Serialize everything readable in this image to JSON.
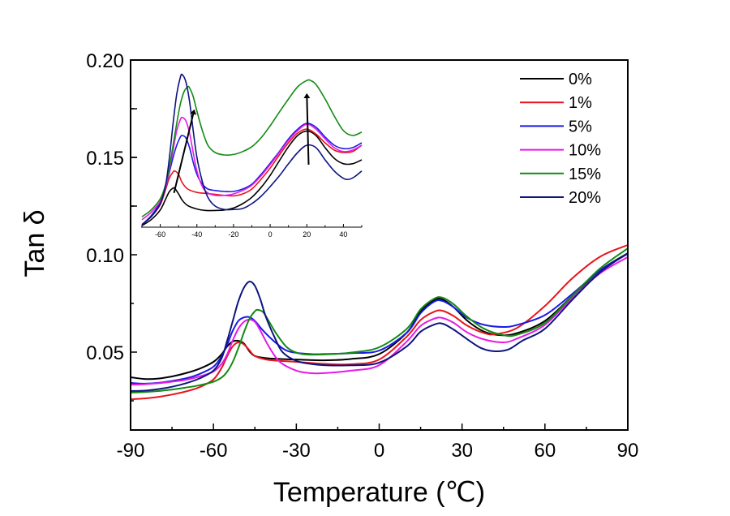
{
  "chart_data": {
    "type": "line",
    "title": "",
    "xlabel": "Temperature (℃)",
    "ylabel": "Tan δ",
    "xlim": [
      -90,
      90
    ],
    "ylim": [
      0.01,
      0.2
    ],
    "xticks": [
      -90,
      -60,
      -30,
      0,
      30,
      60,
      90
    ],
    "xtick_labels": [
      "-90",
      "-60",
      "-30",
      "0",
      "30",
      "60",
      "90"
    ],
    "yticks": [
      0.05,
      0.1,
      0.15,
      0.2
    ],
    "ytick_labels": [
      "0.05",
      "0.10",
      "0.15",
      "0.20"
    ],
    "grid": false,
    "legend_position": "top-right",
    "series": [
      {
        "name": "0%",
        "color": "#000000",
        "x": [
          -90,
          -85,
          -80,
          -75,
          -70,
          -65,
          -60,
          -57,
          -55,
          -53,
          -51,
          -49,
          -47,
          -45,
          -40,
          -30,
          -20,
          -10,
          0,
          10,
          15,
          20,
          23,
          27,
          32,
          38,
          44,
          50,
          60,
          70,
          80,
          90
        ],
        "y": [
          0.0371,
          0.0362,
          0.0364,
          0.0375,
          0.0392,
          0.0415,
          0.045,
          0.049,
          0.053,
          0.0555,
          0.0558,
          0.0545,
          0.0505,
          0.048,
          0.0468,
          0.0462,
          0.0458,
          0.0465,
          0.049,
          0.06,
          0.071,
          0.0768,
          0.077,
          0.073,
          0.066,
          0.0605,
          0.0587,
          0.0598,
          0.066,
          0.079,
          0.092,
          0.1008
        ]
      },
      {
        "name": "1%",
        "color": "#e8141c",
        "x": [
          -90,
          -85,
          -80,
          -75,
          -70,
          -65,
          -60,
          -57,
          -55,
          -53,
          -51,
          -49,
          -47,
          -45,
          -40,
          -30,
          -20,
          -10,
          0,
          10,
          15,
          20,
          23,
          27,
          32,
          38,
          42,
          50,
          60,
          70,
          80,
          90
        ],
        "y": [
          0.0258,
          0.0262,
          0.027,
          0.0282,
          0.0298,
          0.032,
          0.036,
          0.042,
          0.048,
          0.053,
          0.055,
          0.054,
          0.051,
          0.048,
          0.046,
          0.045,
          0.044,
          0.0438,
          0.0462,
          0.058,
          0.0665,
          0.0708,
          0.0712,
          0.0685,
          0.0635,
          0.0598,
          0.0592,
          0.0625,
          0.0737,
          0.088,
          0.099,
          0.105
        ]
      },
      {
        "name": "5%",
        "color": "#1a1ae6",
        "x": [
          -90,
          -85,
          -80,
          -75,
          -70,
          -65,
          -60,
          -57,
          -55,
          -53,
          -51,
          -49,
          -47,
          -45,
          -42,
          -38,
          -33,
          -25,
          -20,
          -10,
          0,
          10,
          15,
          20,
          23,
          27,
          32,
          38,
          45,
          50,
          60,
          70,
          80,
          90
        ],
        "y": [
          0.0342,
          0.0338,
          0.0342,
          0.0352,
          0.0365,
          0.0388,
          0.0425,
          0.048,
          0.054,
          0.061,
          0.066,
          0.0678,
          0.068,
          0.066,
          0.061,
          0.0555,
          0.0505,
          0.049,
          0.049,
          0.0495,
          0.0508,
          0.06,
          0.07,
          0.076,
          0.0762,
          0.073,
          0.0675,
          0.064,
          0.0629,
          0.064,
          0.069,
          0.08,
          0.092,
          0.1005
        ]
      },
      {
        "name": "10%",
        "color": "#e61ae6",
        "x": [
          -90,
          -85,
          -80,
          -75,
          -70,
          -65,
          -60,
          -57,
          -55,
          -53,
          -51,
          -49,
          -47,
          -45,
          -43,
          -40,
          -36,
          -30,
          -25,
          -20,
          -10,
          0,
          10,
          15,
          20,
          23,
          27,
          32,
          38,
          45,
          50,
          60,
          70,
          80,
          90
        ],
        "y": [
          0.0333,
          0.0335,
          0.034,
          0.0348,
          0.0358,
          0.0375,
          0.04,
          0.044,
          0.049,
          0.056,
          0.062,
          0.0655,
          0.0667,
          0.0655,
          0.061,
          0.053,
          0.045,
          0.0405,
          0.0392,
          0.0392,
          0.0405,
          0.0433,
          0.0555,
          0.0635,
          0.0672,
          0.0675,
          0.065,
          0.06,
          0.0565,
          0.055,
          0.057,
          0.064,
          0.078,
          0.0905,
          0.0988
        ]
      },
      {
        "name": "15%",
        "color": "#138a13",
        "x": [
          -90,
          -85,
          -80,
          -75,
          -70,
          -65,
          -60,
          -57,
          -55,
          -53,
          -51,
          -49,
          -47,
          -45,
          -44,
          -42,
          -40,
          -37,
          -33,
          -28,
          -20,
          -10,
          0,
          10,
          15,
          20,
          23,
          27,
          32,
          38,
          45,
          50,
          60,
          70,
          80,
          90
        ],
        "y": [
          0.0292,
          0.0295,
          0.03,
          0.0308,
          0.0318,
          0.033,
          0.0348,
          0.037,
          0.04,
          0.045,
          0.052,
          0.06,
          0.067,
          0.071,
          0.0717,
          0.0705,
          0.066,
          0.059,
          0.052,
          0.049,
          0.0488,
          0.0498,
          0.0525,
          0.062,
          0.072,
          0.0775,
          0.0779,
          0.0745,
          0.068,
          0.062,
          0.0587,
          0.059,
          0.065,
          0.079,
          0.093,
          0.1033
        ]
      },
      {
        "name": "20%",
        "color": "#0d1380",
        "x": [
          -90,
          -85,
          -80,
          -75,
          -70,
          -65,
          -60,
          -57,
          -55,
          -53,
          -51,
          -49,
          -47,
          -45,
          -43,
          -41,
          -38,
          -35,
          -30,
          -25,
          -20,
          -10,
          0,
          10,
          15,
          20,
          23,
          27,
          32,
          37,
          42,
          47,
          52,
          60,
          70,
          80,
          90
        ],
        "y": [
          0.03,
          0.0302,
          0.031,
          0.0322,
          0.034,
          0.0365,
          0.0405,
          0.047,
          0.056,
          0.066,
          0.076,
          0.083,
          0.0862,
          0.084,
          0.077,
          0.068,
          0.058,
          0.05,
          0.0455,
          0.044,
          0.0433,
          0.0432,
          0.0446,
          0.053,
          0.0605,
          0.0642,
          0.0646,
          0.0615,
          0.0565,
          0.052,
          0.0504,
          0.0515,
          0.056,
          0.062,
          0.077,
          0.091,
          0.1008
        ]
      }
    ],
    "inset": {
      "xlim": [
        -70,
        50
      ],
      "ylim": [
        0.567,
        4.0
      ],
      "xticks": [
        -60,
        -40,
        -20,
        0,
        20,
        40
      ],
      "xtick_labels": [
        "-60",
        "-40",
        "-20",
        "0",
        "20",
        "40"
      ],
      "minor_xticks": [
        -70,
        -50,
        -30,
        -10,
        10,
        30,
        50
      ],
      "yticks": [
        1,
        2,
        3
      ],
      "ytick_labels": [
        "",
        "",
        ""
      ],
      "y_units_note": "unlabeled",
      "series": [
        {
          "name": "0%",
          "x": [
            -70,
            -65,
            -60,
            -57,
            -55,
            -53,
            -52,
            -50,
            -48,
            -45,
            -40,
            -35,
            -30,
            -25,
            -20,
            -15,
            -10,
            -5,
            0,
            5,
            10,
            15,
            20,
            25,
            30,
            35,
            40,
            45,
            50
          ],
          "y": [
            0.6,
            0.72,
            0.92,
            1.15,
            1.3,
            1.37,
            1.36,
            1.25,
            1.12,
            1.01,
            0.94,
            0.91,
            0.91,
            0.92,
            0.96,
            1.05,
            1.18,
            1.38,
            1.63,
            1.93,
            2.22,
            2.45,
            2.54,
            2.45,
            2.2,
            1.98,
            1.87,
            1.87,
            1.95
          ]
        },
        {
          "name": "1%",
          "x": [
            -70,
            -65,
            -60,
            -57,
            -55,
            -53,
            -52,
            -50,
            -48,
            -45,
            -40,
            -35,
            -30,
            -25,
            -20,
            -15,
            -10,
            -5,
            0,
            5,
            10,
            15,
            20,
            25,
            30,
            35,
            40,
            45,
            50
          ],
          "y": [
            0.62,
            0.78,
            1.03,
            1.35,
            1.58,
            1.7,
            1.72,
            1.65,
            1.48,
            1.35,
            1.28,
            1.26,
            1.24,
            1.22,
            1.21,
            1.25,
            1.35,
            1.55,
            1.78,
            2.05,
            2.3,
            2.5,
            2.58,
            2.48,
            2.3,
            2.15,
            2.1,
            2.12,
            2.25
          ]
        },
        {
          "name": "5%",
          "x": [
            -70,
            -65,
            -60,
            -57,
            -55,
            -53,
            -51,
            -49,
            -48,
            -46,
            -44,
            -42,
            -40,
            -37,
            -34,
            -30,
            -25,
            -20,
            -15,
            -10,
            -5,
            0,
            5,
            10,
            15,
            20,
            25,
            30,
            35,
            40,
            45,
            50
          ],
          "y": [
            0.62,
            0.8,
            1.08,
            1.4,
            1.7,
            2.0,
            2.25,
            2.42,
            2.45,
            2.4,
            2.2,
            1.9,
            1.65,
            1.45,
            1.35,
            1.32,
            1.3,
            1.3,
            1.35,
            1.45,
            1.65,
            1.88,
            2.12,
            2.38,
            2.58,
            2.7,
            2.62,
            2.42,
            2.25,
            2.18,
            2.2,
            2.3
          ]
        },
        {
          "name": "10%",
          "x": [
            -70,
            -65,
            -60,
            -57,
            -55,
            -53,
            -51,
            -49,
            -48,
            -46,
            -44,
            -42,
            -40,
            -37,
            -34,
            -30,
            -25,
            -20,
            -15,
            -10,
            -5,
            0,
            5,
            10,
            15,
            20,
            25,
            30,
            35,
            40,
            45,
            50
          ],
          "y": [
            0.72,
            0.87,
            1.1,
            1.4,
            1.75,
            2.15,
            2.55,
            2.78,
            2.82,
            2.75,
            2.5,
            2.1,
            1.72,
            1.4,
            1.27,
            1.22,
            1.22,
            1.25,
            1.32,
            1.43,
            1.62,
            1.85,
            2.1,
            2.35,
            2.55,
            2.68,
            2.58,
            2.38,
            2.2,
            2.12,
            2.15,
            2.25
          ]
        },
        {
          "name": "15%",
          "x": [
            -70,
            -65,
            -60,
            -57,
            -55,
            -53,
            -51,
            -49,
            -47,
            -45,
            -44,
            -42,
            -40,
            -37,
            -34,
            -30,
            -25,
            -20,
            -15,
            -10,
            -5,
            0,
            5,
            10,
            15,
            20,
            22,
            25,
            30,
            35,
            40,
            45,
            50
          ],
          "y": [
            0.78,
            0.92,
            1.15,
            1.45,
            1.8,
            2.25,
            2.7,
            3.1,
            3.35,
            3.45,
            3.43,
            3.25,
            2.95,
            2.55,
            2.25,
            2.1,
            2.05,
            2.06,
            2.12,
            2.22,
            2.4,
            2.65,
            2.93,
            3.2,
            3.45,
            3.58,
            3.58,
            3.5,
            3.2,
            2.85,
            2.55,
            2.45,
            2.52
          ]
        },
        {
          "name": "20%",
          "x": [
            -70,
            -65,
            -60,
            -57,
            -55,
            -53,
            -51,
            -49,
            -48,
            -46,
            -44,
            -42,
            -40,
            -37,
            -34,
            -30,
            -25,
            -20,
            -15,
            -10,
            -5,
            0,
            5,
            10,
            15,
            20,
            25,
            30,
            35,
            40,
            43,
            46,
            50
          ],
          "y": [
            0.62,
            0.78,
            1.05,
            1.45,
            2.0,
            2.7,
            3.3,
            3.65,
            3.7,
            3.55,
            3.15,
            2.55,
            2.0,
            1.5,
            1.18,
            1.0,
            0.93,
            0.93,
            0.95,
            1.05,
            1.2,
            1.4,
            1.62,
            1.87,
            2.1,
            2.25,
            2.2,
            1.95,
            1.72,
            1.57,
            1.55,
            1.6,
            1.72
          ]
        }
      ],
      "arrows": [
        {
          "from": [
            -52.5,
            1.27
          ],
          "to": [
            -41.5,
            2.97
          ]
        },
        {
          "from": [
            21,
            1.85
          ],
          "to": [
            20,
            3.3
          ]
        }
      ]
    }
  }
}
